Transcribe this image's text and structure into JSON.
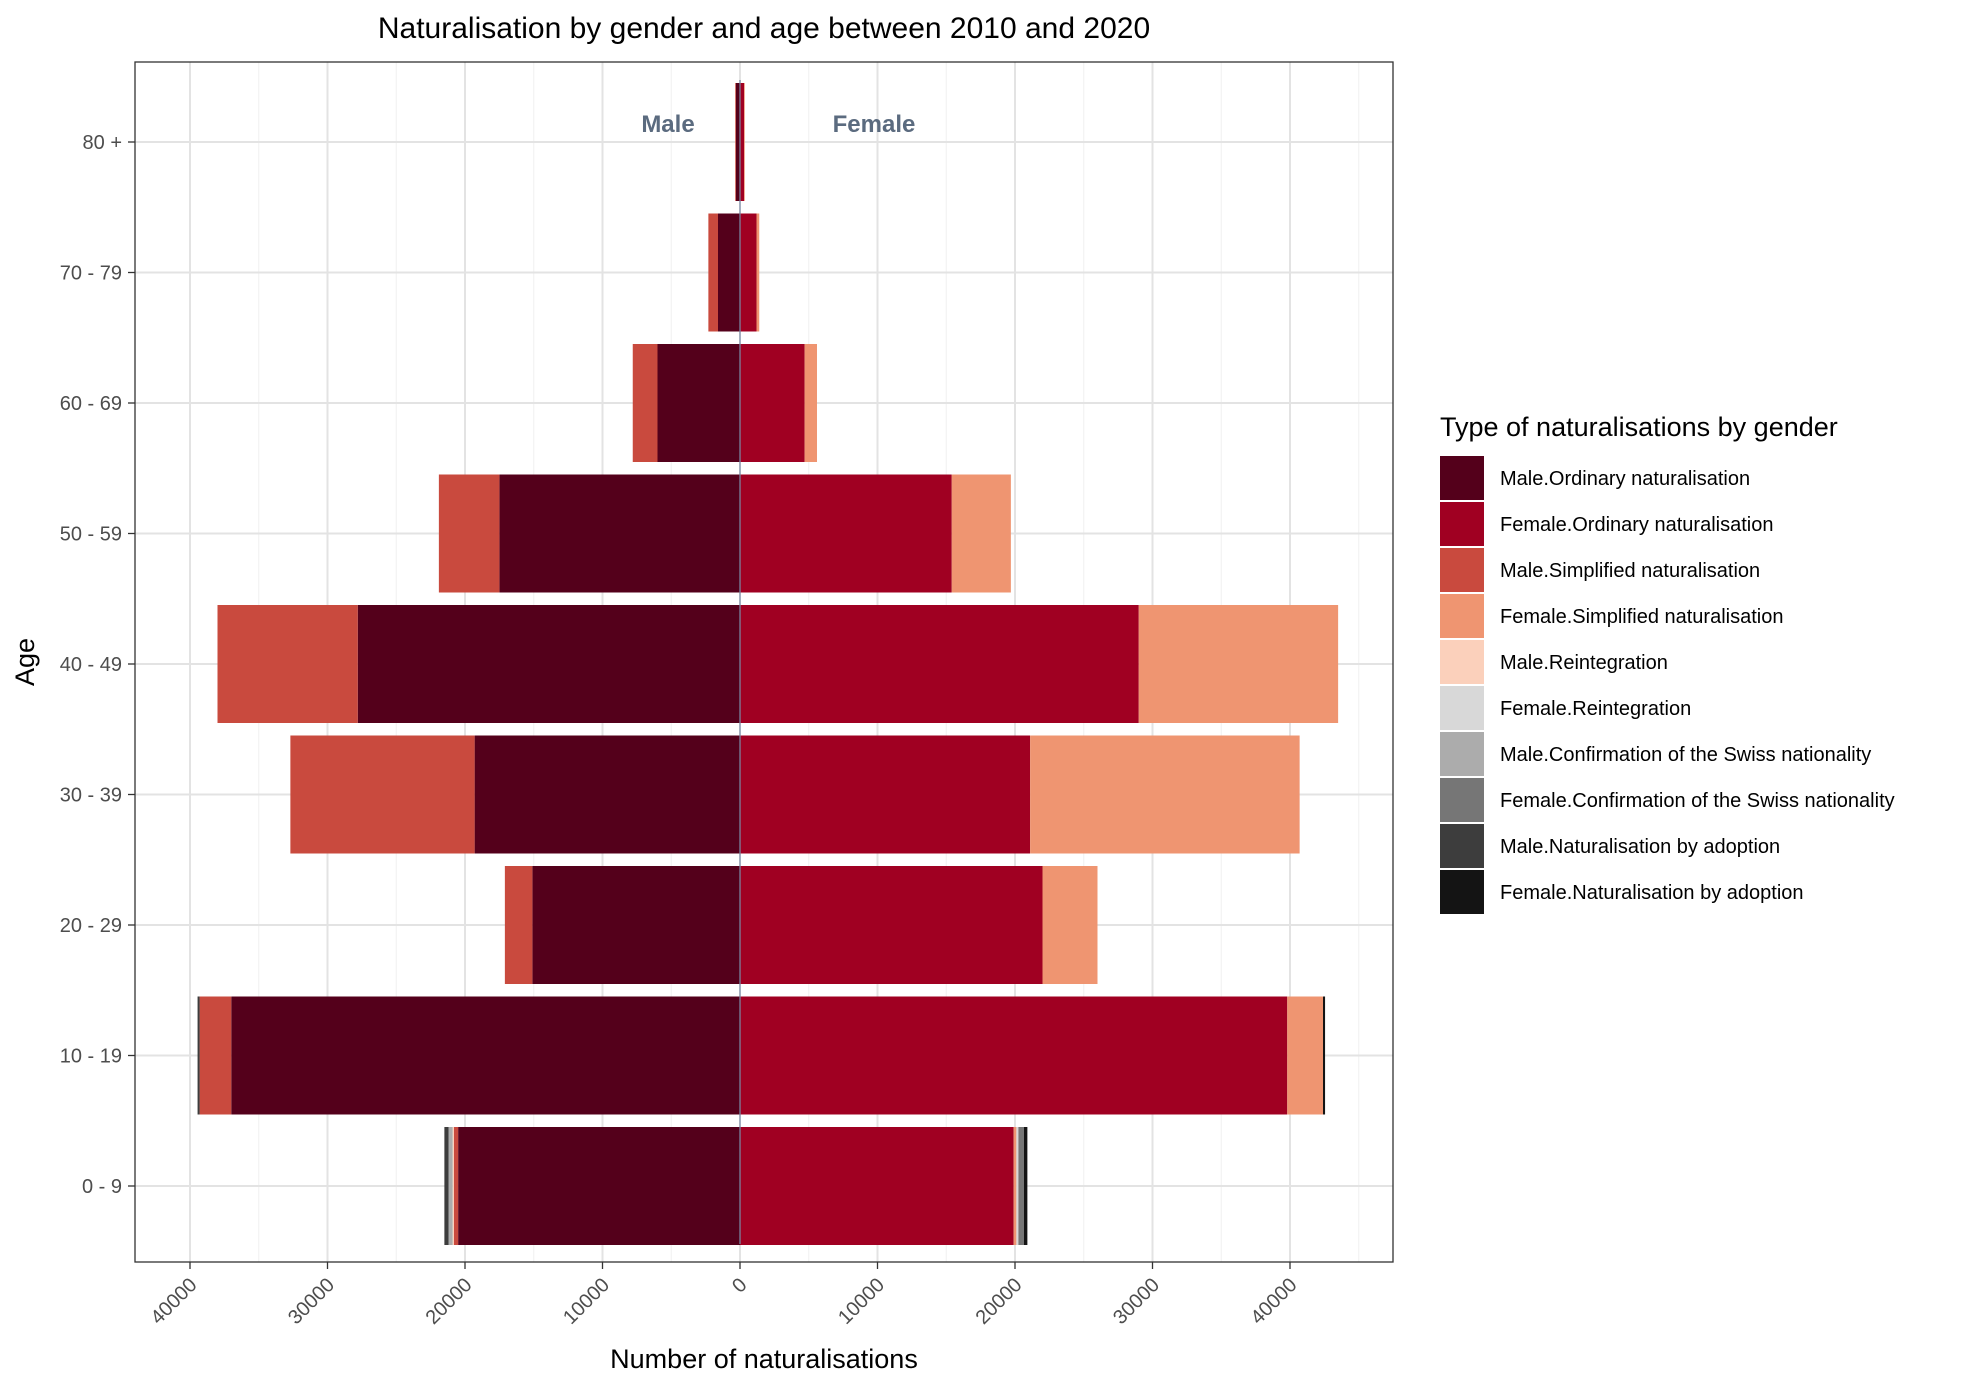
{
  "chart_data": {
    "type": "bar",
    "orientation": "horizontal",
    "layout": "population-pyramid",
    "title": "Naturalisation by gender and age between 2010 and 2020",
    "xlabel": "Number of naturalisations",
    "ylabel": "Age",
    "xlim": [
      -45000,
      45000
    ],
    "x_ticks": [
      -40000,
      -30000,
      -20000,
      -10000,
      0,
      10000,
      20000,
      30000,
      40000
    ],
    "x_tick_labels": [
      "40000",
      "30000",
      "20000",
      "10000",
      "0",
      "10000",
      "20000",
      "30000",
      "40000"
    ],
    "categories": [
      "0 - 9",
      "10 - 19",
      "20 - 29",
      "30 - 39",
      "40 - 49",
      "50 - 59",
      "60 - 69",
      "70 - 79",
      "80 +"
    ],
    "side_labels": {
      "left": "Male",
      "right": "Female",
      "color": "#5b6b7f"
    },
    "grid": true,
    "legend": {
      "title": "Type of naturalisations by gender",
      "position": "right"
    },
    "series": [
      {
        "name": "Male.Ordinary naturalisation",
        "gender": "male",
        "color": "#54001b",
        "values": [
          20500,
          37000,
          15100,
          19300,
          27800,
          17500,
          6000,
          1600,
          300
        ]
      },
      {
        "name": "Female.Ordinary naturalisation",
        "gender": "female",
        "color": "#a00022",
        "values": [
          19900,
          39800,
          22000,
          21100,
          29000,
          15400,
          4700,
          1200,
          300
        ]
      },
      {
        "name": "Male.Simplified naturalisation",
        "gender": "male",
        "color": "#c94a3e",
        "values": [
          300,
          2300,
          2000,
          13400,
          10200,
          4400,
          1800,
          700,
          50
        ]
      },
      {
        "name": "Female.Simplified naturalisation",
        "gender": "female",
        "color": "#ef9571",
        "values": [
          200,
          2600,
          4000,
          19600,
          14500,
          4300,
          900,
          200,
          50
        ]
      },
      {
        "name": "Male.Reintegration",
        "gender": "male",
        "color": "#fbd0bb",
        "values": [
          100,
          0,
          0,
          0,
          0,
          0,
          0,
          0,
          0
        ]
      },
      {
        "name": "Female.Reintegration",
        "gender": "female",
        "color": "#d8d8d8",
        "values": [
          150,
          0,
          0,
          0,
          0,
          0,
          0,
          0,
          0
        ]
      },
      {
        "name": "Male.Confirmation of the Swiss nationality",
        "gender": "male",
        "color": "#acacac",
        "values": [
          300,
          0,
          0,
          0,
          0,
          0,
          0,
          0,
          0
        ]
      },
      {
        "name": "Female.Confirmation of the Swiss nationality",
        "gender": "female",
        "color": "#767676",
        "values": [
          400,
          0,
          0,
          0,
          0,
          0,
          0,
          0,
          0
        ]
      },
      {
        "name": "Male.Naturalisation by adoption",
        "gender": "male",
        "color": "#3d3d3d",
        "values": [
          300,
          150,
          0,
          0,
          0,
          0,
          0,
          0,
          0
        ]
      },
      {
        "name": "Female.Naturalisation by adoption",
        "gender": "female",
        "color": "#141414",
        "values": [
          250,
          150,
          0,
          0,
          0,
          0,
          0,
          0,
          0
        ]
      }
    ]
  }
}
